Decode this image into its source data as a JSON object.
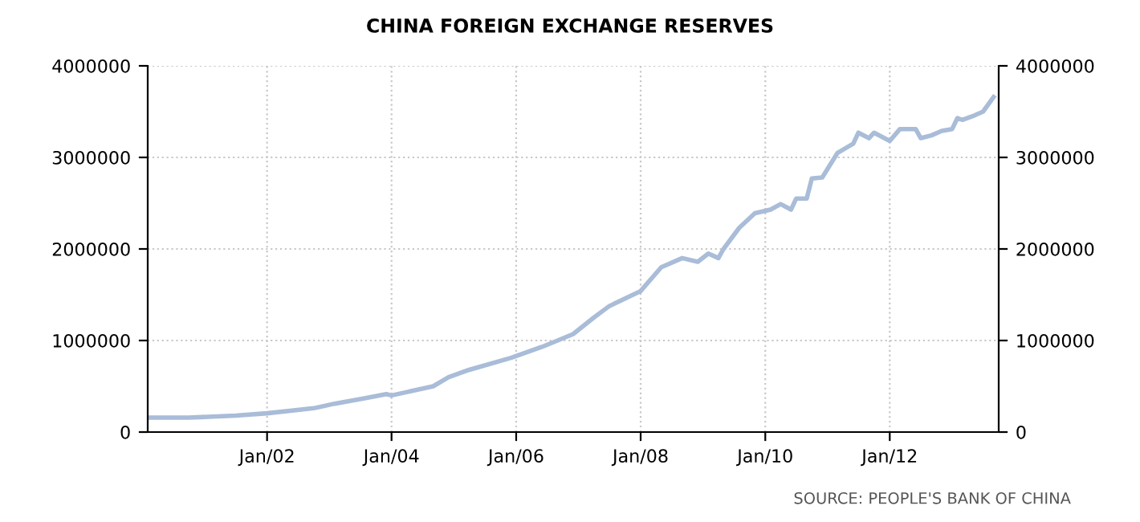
{
  "chart_data": {
    "type": "line",
    "title": "CHINA FOREIGN EXCHANGE RESERVES",
    "x": [
      "2000-02",
      "2000-10",
      "2001-07",
      "2002-01",
      "2002-10",
      "2003-02",
      "2003-08",
      "2003-12",
      "2004-01",
      "2004-09",
      "2004-12",
      "2005-04",
      "2005-12",
      "2006-06",
      "2006-09",
      "2006-12",
      "2007-04",
      "2007-07",
      "2008-01",
      "2008-05",
      "2008-09",
      "2008-12",
      "2009-02",
      "2009-04",
      "2009-05",
      "2009-08",
      "2009-11",
      "2010-02",
      "2010-04",
      "2010-06",
      "2010-07",
      "2010-09",
      "2010-10",
      "2010-12",
      "2011-03",
      "2011-06",
      "2011-07",
      "2011-09",
      "2011-10",
      "2012-01",
      "2012-03",
      "2012-06",
      "2012-07",
      "2012-09",
      "2012-11",
      "2013-01",
      "2013-02",
      "2013-03",
      "2013-05",
      "2013-07",
      "2013-09"
    ],
    "series": [
      {
        "color": "#a9bcd8",
        "values": [
          158000,
          158000,
          180000,
          205000,
          260000,
          310000,
          370000,
          415000,
          400000,
          500000,
          600000,
          680000,
          810000,
          930000,
          1000000,
          1070000,
          1250000,
          1376000,
          1540000,
          1800000,
          1900000,
          1860000,
          1950000,
          1900000,
          2000000,
          2230000,
          2390000,
          2430000,
          2490000,
          2430000,
          2550000,
          2550000,
          2770000,
          2780000,
          3050000,
          3150000,
          3270000,
          3210000,
          3270000,
          3180000,
          3310000,
          3310000,
          3210000,
          3240000,
          3290000,
          3310000,
          3430000,
          3410000,
          3450000,
          3500000,
          3660000
        ]
      }
    ],
    "xlim": [
      "2000-02",
      "2013-10"
    ],
    "xticks": [
      {
        "value": "2002-01",
        "label": "Jan/02"
      },
      {
        "value": "2004-01",
        "label": "Jan/04"
      },
      {
        "value": "2006-01",
        "label": "Jan/06"
      },
      {
        "value": "2008-01",
        "label": "Jan/08"
      },
      {
        "value": "2010-01",
        "label": "Jan/10"
      },
      {
        "value": "2012-01",
        "label": "Jan/12"
      }
    ],
    "ylim": [
      0,
      4000000
    ],
    "yticks": [
      0,
      1000000,
      2000000,
      3000000,
      4000000
    ],
    "y2lim": [
      0,
      4000000
    ],
    "y2ticks": [
      0,
      1000000,
      2000000,
      3000000,
      4000000
    ],
    "grid": true,
    "line_style": "solid",
    "marker": "none",
    "annotations": [
      "SOURCE: PEOPLE'S BANK OF CHINA"
    ]
  }
}
